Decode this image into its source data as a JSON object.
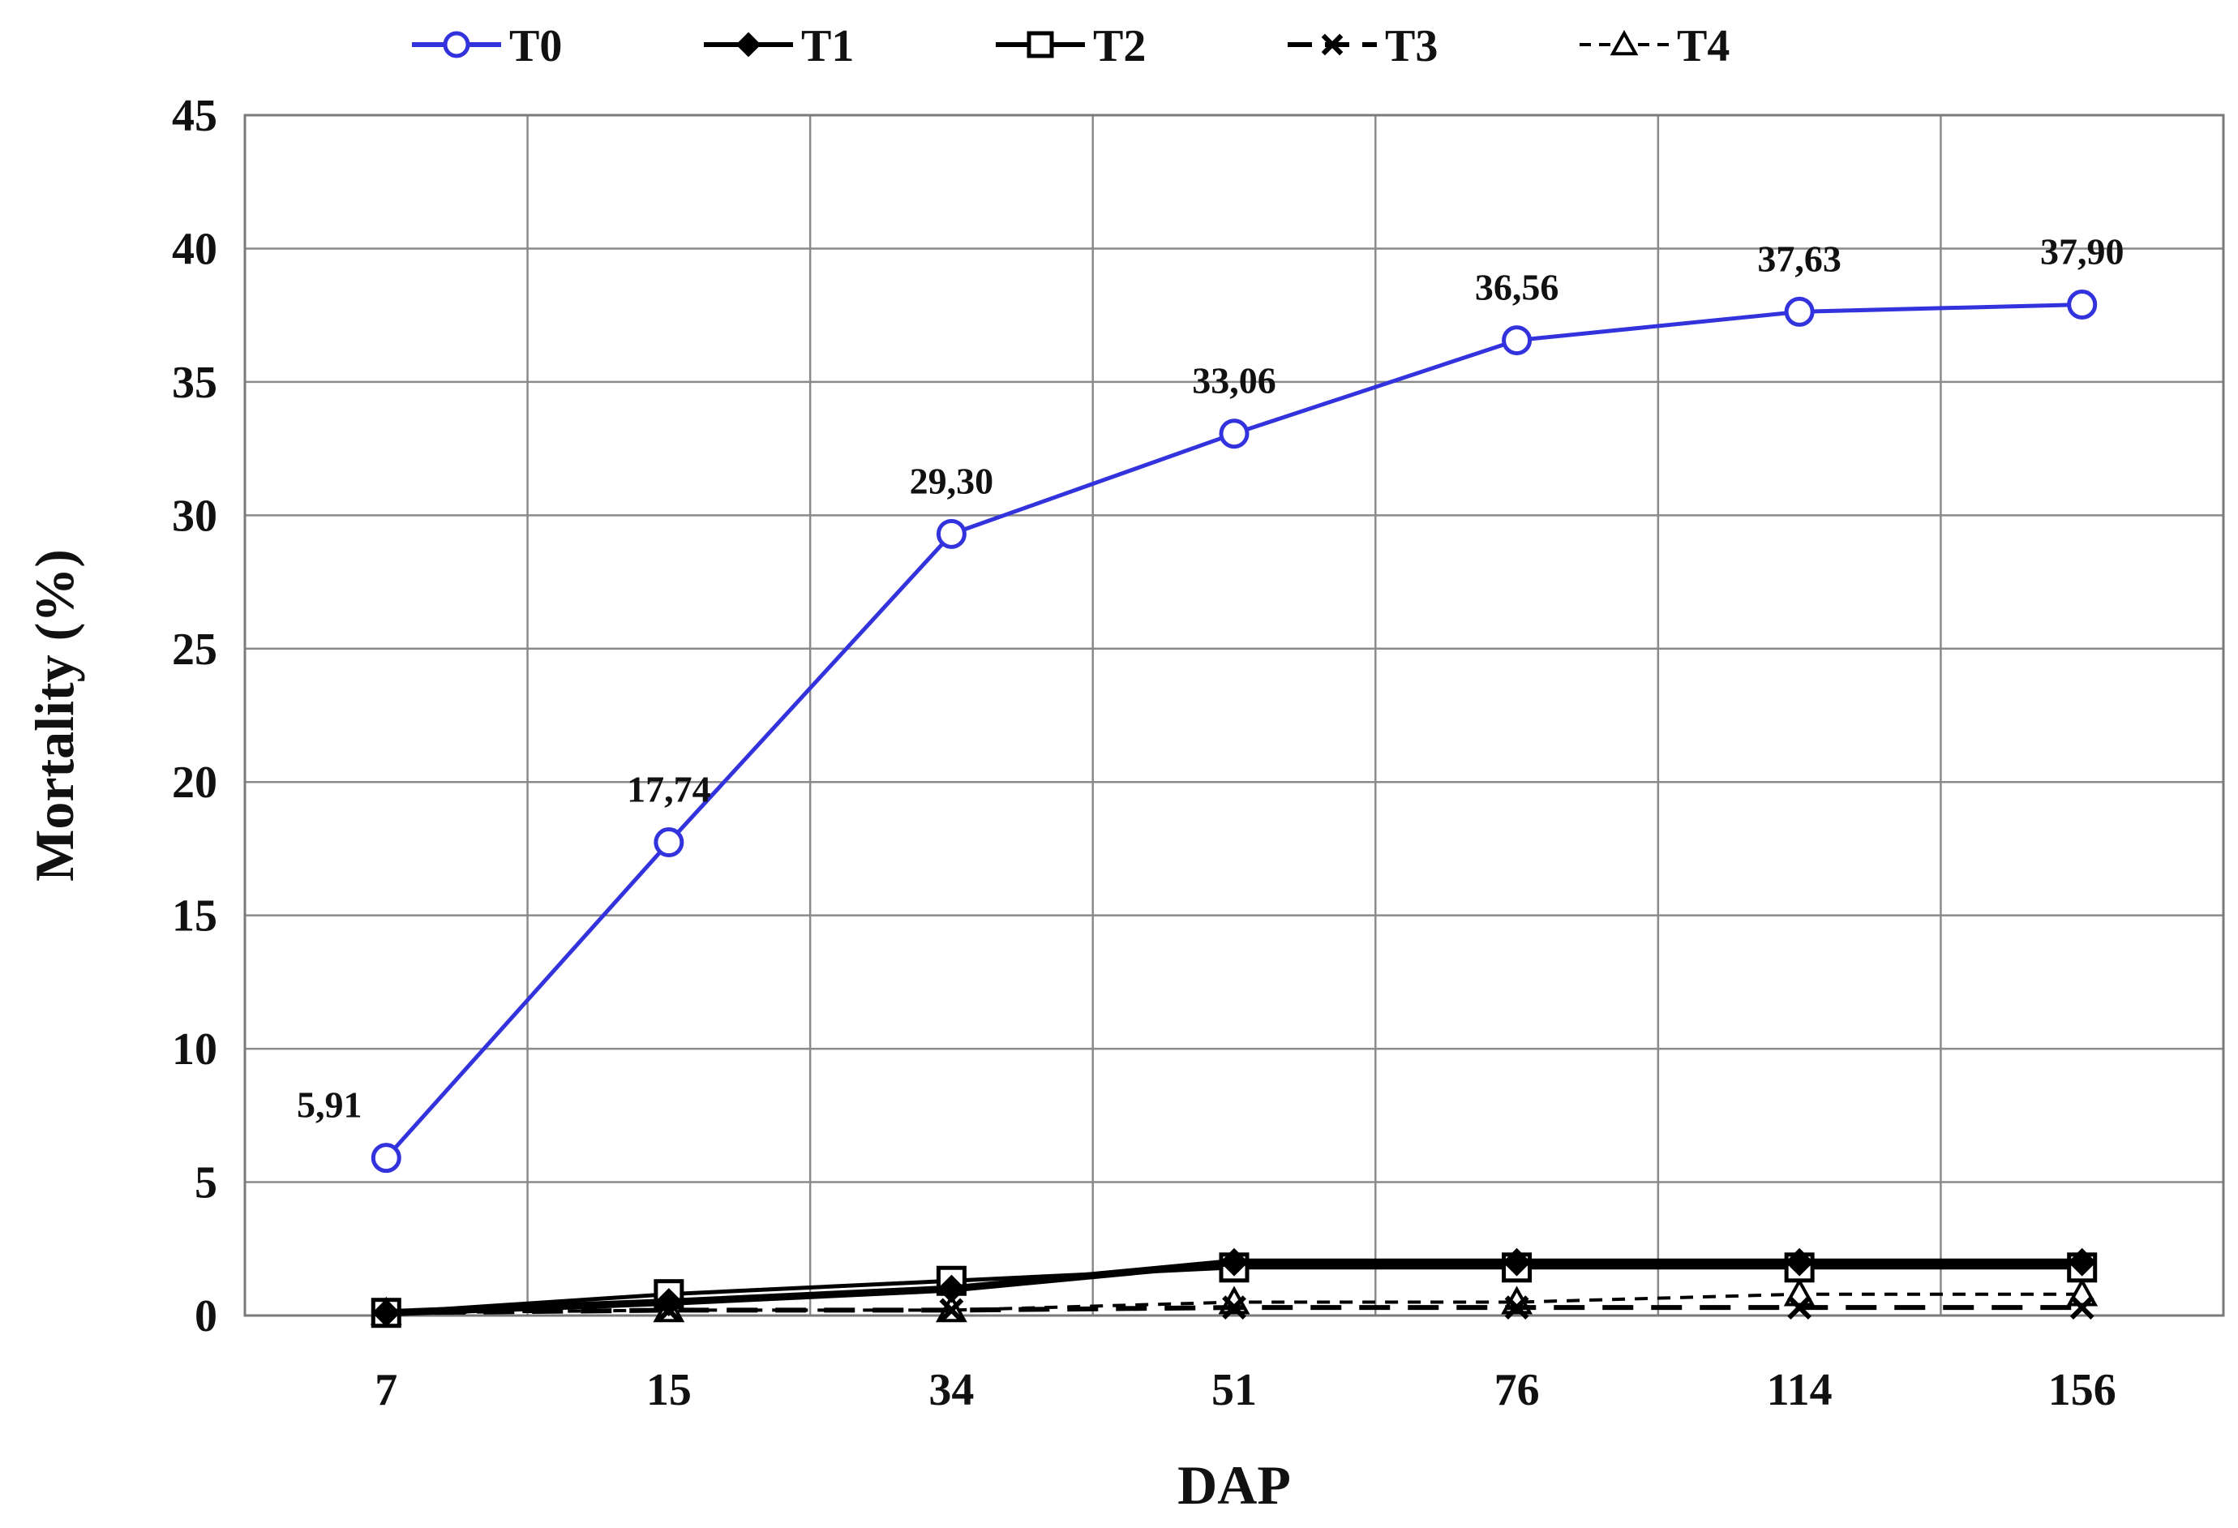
{
  "chart_data": {
    "type": "line",
    "title": "",
    "xlabel": "DAP",
    "ylabel": "Mortality (%)",
    "categories": [
      "7",
      "15",
      "34",
      "51",
      "76",
      "114",
      "156"
    ],
    "ylim": [
      0,
      45
    ],
    "yticks": [
      0,
      5,
      10,
      15,
      20,
      25,
      30,
      35,
      40,
      45
    ],
    "grid": true,
    "legend_position": "top",
    "series": [
      {
        "name": "T0",
        "values": [
          5.91,
          17.74,
          29.3,
          33.06,
          36.56,
          37.63,
          37.9
        ],
        "data_labels": [
          "5,91",
          "17,74",
          "29,30",
          "33,06",
          "36,56",
          "37,63",
          "37,90"
        ],
        "color": "#3333dd",
        "marker": "circle-open",
        "line_style": "solid"
      },
      {
        "name": "T1",
        "values": [
          0.1,
          0.5,
          1.0,
          2.0,
          2.0,
          2.0,
          2.0
        ],
        "color": "#000000",
        "marker": "diamond",
        "line_style": "solid"
      },
      {
        "name": "T2",
        "values": [
          0.1,
          0.8,
          1.3,
          1.8,
          1.8,
          1.8,
          1.8
        ],
        "color": "#000000",
        "marker": "square-open",
        "line_style": "solid"
      },
      {
        "name": "T3",
        "values": [
          0.1,
          0.2,
          0.2,
          0.3,
          0.3,
          0.3,
          0.3
        ],
        "color": "#000000",
        "marker": "x",
        "line_style": "long-dash"
      },
      {
        "name": "T4",
        "values": [
          0.1,
          0.2,
          0.2,
          0.5,
          0.5,
          0.8,
          0.8
        ],
        "color": "#000000",
        "marker": "triangle-open",
        "line_style": "short-dash"
      }
    ]
  }
}
